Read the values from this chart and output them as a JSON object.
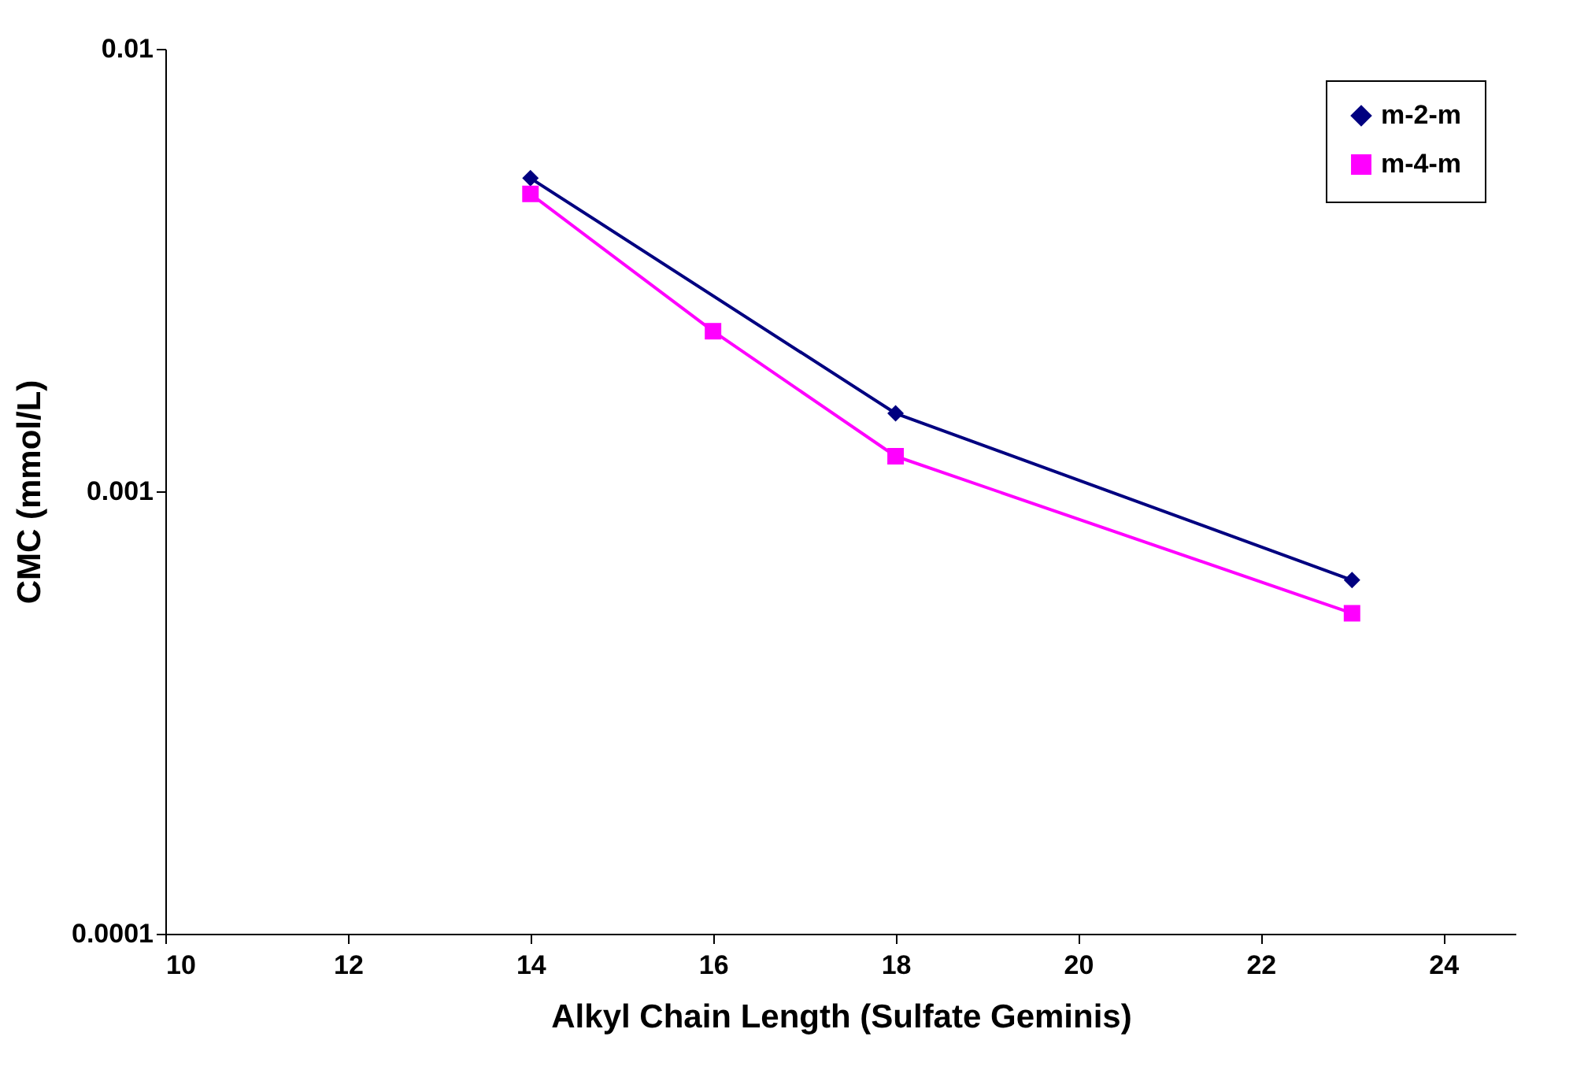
{
  "chart_data": {
    "type": "line",
    "xlabel": "Alkyl Chain Length (Sulfate Geminis)",
    "ylabel": "CMC (mmol/L)",
    "xlim": [
      10,
      24.8
    ],
    "xticks": [
      10,
      12,
      14,
      16,
      18,
      20,
      22,
      24
    ],
    "ylim": [
      0.0001,
      0.01
    ],
    "yticks": [
      0.0001,
      0.001,
      0.01
    ],
    "log": "y",
    "grid": false,
    "legend": "top right",
    "series": [
      {
        "name": "m-2-m",
        "color": "#000080",
        "marker": "diamond",
        "x": [
          14,
          18,
          23
        ],
        "values": [
          0.0051,
          0.0015,
          0.00063
        ]
      },
      {
        "name": "m-4-m",
        "color": "#ff00ff",
        "marker": "square",
        "x": [
          14,
          16,
          18,
          23
        ],
        "values": [
          0.0047,
          0.0023,
          0.0012,
          0.00053
        ]
      }
    ]
  }
}
